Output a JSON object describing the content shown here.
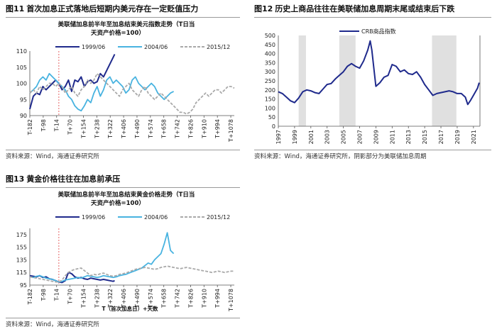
{
  "figures": [
    {
      "num": "图11",
      "title": "首次加息正式落地后短期内美元存在一定贬值压力",
      "source": "资料来源：Wind，海通证券研究所",
      "chart_data": {
        "type": "line",
        "title": "美联储加息前半年至加息结束美元指数走势（T日当天资产价格=100）",
        "title_lines": [
          "美联储加息前半年至加息结束美元指数走势（T日当",
          "天资产价格=100）"
        ],
        "xlabel": "",
        "ylabel": "",
        "x_ticks": [
          "T-182",
          "T-98",
          "T-14",
          "T+70",
          "T+154",
          "T+238",
          "T+322",
          "T+406",
          "T+490",
          "T+574",
          "T+658",
          "T+742",
          "T+826",
          "T+910",
          "T+994",
          "T+1078"
        ],
        "x_range": [
          -182,
          1100
        ],
        "ylim": [
          90,
          110
        ],
        "y_ticks": [
          90,
          95,
          100,
          105,
          110
        ],
        "vline_x": 0,
        "legend_position": "top",
        "series": [
          {
            "name": "1999/06",
            "color": "#1f2a8c",
            "style": "solid",
            "x": [
              -182,
              -160,
              -140,
              -120,
              -100,
              -80,
              -60,
              -40,
              -20,
              0,
              20,
              40,
              60,
              80,
              100,
              120,
              140,
              160,
              180,
              200,
              220,
              240,
              260,
              280,
              300,
              320,
              340,
              350
            ],
            "y": [
              92,
              96,
              97,
              96.5,
              99,
              98,
              99,
              100,
              101,
              100,
              98,
              99,
              101,
              97.5,
              101,
              100.5,
              102,
              99,
              100.5,
              101,
              100,
              100.5,
              103,
              102,
              104,
              106,
              108,
              109
            ]
          },
          {
            "name": "2004/06",
            "color": "#48b3e0",
            "style": "solid",
            "x": [
              -182,
              -160,
              -140,
              -120,
              -100,
              -80,
              -60,
              -40,
              -20,
              0,
              20,
              40,
              60,
              80,
              100,
              120,
              140,
              160,
              180,
              200,
              220,
              240,
              260,
              280,
              300,
              320,
              340,
              360,
              380,
              400,
              420,
              440,
              460,
              480,
              500,
              520,
              540,
              560,
              580,
              600,
              620,
              640,
              660,
              680,
              700,
              720
            ],
            "y": [
              97,
              98,
              99,
              101,
              102,
              101,
              103,
              102,
              101,
              100,
              99,
              98,
              96,
              95,
              93,
              92,
              91.5,
              93,
              95,
              94,
              97,
              99,
              96,
              98,
              101,
              102,
              100,
              101,
              100,
              99,
              97,
              98,
              101,
              102,
              100,
              99,
              98,
              99,
              100,
              99,
              97,
              96,
              95,
              96,
              97,
              97.5
            ]
          },
          {
            "name": "2015/12",
            "color": "#a9a9a9",
            "style": "dashed",
            "x": [
              -182,
              -160,
              -140,
              -120,
              -100,
              -80,
              -60,
              -40,
              -20,
              0,
              20,
              40,
              60,
              80,
              100,
              120,
              140,
              160,
              180,
              200,
              220,
              240,
              260,
              280,
              300,
              320,
              340,
              360,
              380,
              400,
              420,
              440,
              460,
              480,
              500,
              520,
              540,
              560,
              580,
              600,
              620,
              640,
              660,
              680,
              700,
              720,
              740,
              760,
              780,
              800,
              820,
              840,
              860,
              880,
              900,
              920,
              940,
              960,
              980,
              1000,
              1020,
              1040,
              1060,
              1080,
              1100
            ],
            "y": [
              97,
              98,
              97,
              99,
              98,
              99,
              100,
              100,
              99,
              100,
              99,
              97,
              98,
              99,
              97,
              96,
              98,
              99,
              101,
              100,
              101,
              103,
              102,
              101,
              100,
              99,
              98,
              97,
              96,
              98,
              99,
              100,
              98,
              97,
              96,
              98,
              99,
              97,
              96,
              95,
              96,
              97,
              96,
              95,
              94,
              93,
              92,
              91,
              91,
              90.5,
              91,
              92,
              94,
              95,
              96,
              97,
              96,
              97,
              98,
              98,
              97,
              98,
              99,
              99,
              98.5
            ]
          }
        ]
      }
    },
    {
      "num": "图12",
      "title": "历史上商品往往在美联储加息周期末尾或结束后下跌",
      "source": "资料来源：Wind，海通证券研究所，阴影部分为美联储加息周期",
      "chart_data": {
        "type": "line",
        "title": "",
        "xlabel": "",
        "ylabel": "",
        "x_ticks": [
          "1997",
          "1999",
          "2001",
          "2003",
          "2005",
          "2007",
          "2009",
          "2011",
          "2013",
          "2015",
          "2017",
          "2019",
          "2021"
        ],
        "x_range": [
          1997,
          2021.8
        ],
        "ylim": [
          0,
          500
        ],
        "y_ticks": [
          0,
          50,
          100,
          150,
          200,
          250,
          300,
          350,
          400,
          450,
          500
        ],
        "legend_position": "top-left",
        "shaded_periods": [
          [
            1999.5,
            2000.4
          ],
          [
            2004.5,
            2006.5
          ],
          [
            2015.9,
            2018.9
          ]
        ],
        "series": [
          {
            "name": "CRB商品指数",
            "color": "#1f2a8c",
            "x": [
              1997,
              1997.5,
              1998,
              1998.5,
              1999,
              1999.5,
              2000,
              2000.5,
              2001,
              2001.5,
              2002,
              2002.5,
              2003,
              2003.5,
              2004,
              2004.5,
              2005,
              2005.5,
              2006,
              2006.5,
              2007,
              2007.5,
              2008,
              2008.3,
              2008.5,
              2008.8,
              2009,
              2009.5,
              2010,
              2010.5,
              2011,
              2011.5,
              2012,
              2012.5,
              2013,
              2013.5,
              2014,
              2014.5,
              2015,
              2015.5,
              2016,
              2016.5,
              2017,
              2017.5,
              2018,
              2018.5,
              2019,
              2019.5,
              2020,
              2020.3,
              2020.6,
              2021,
              2021.5,
              2021.7
            ],
            "y": [
              190,
              180,
              160,
              140,
              130,
              155,
              190,
              200,
              195,
              185,
              180,
              205,
              230,
              235,
              260,
              280,
              300,
              330,
              345,
              330,
              320,
              360,
              420,
              470,
              420,
              300,
              220,
              240,
              270,
              280,
              340,
              330,
              300,
              310,
              290,
              285,
              300,
              270,
              230,
              200,
              170,
              180,
              185,
              190,
              195,
              190,
              180,
              180,
              160,
              120,
              140,
              170,
              210,
              240
            ]
          }
        ]
      }
    },
    {
      "num": "图13",
      "title": "黄金价格往往在加息前承压",
      "source": "资料来源：Wind，海通证券研究所",
      "chart_data": {
        "type": "line",
        "title": "美联储加息前半年至加息结束黄金价格走势（T日当天资产价格=100）",
        "title_lines": [
          "美联储加息前半年至加息结束黄金价格走势（T日当",
          "天资产价格=100）"
        ],
        "xlabel": "T（首次加息日）+天数",
        "ylabel": "",
        "x_ticks": [
          "T-182",
          "T-98",
          "T-14",
          "T+70",
          "T+154",
          "T+238",
          "T+322",
          "T+406",
          "T+490",
          "T+574",
          "T+658",
          "T+742",
          "T+826",
          "T+910",
          "T+994",
          "T+1078"
        ],
        "x_range": [
          -182,
          1100
        ],
        "ylim": [
          95,
          185
        ],
        "y_ticks": [
          95,
          115,
          135,
          155,
          175
        ],
        "vline_x": 0,
        "legend_position": "top",
        "series": [
          {
            "name": "1999/06",
            "color": "#1f2a8c",
            "style": "solid",
            "x": [
              -182,
              -160,
              -140,
              -120,
              -100,
              -80,
              -60,
              -40,
              -20,
              0,
              20,
              40,
              60,
              80,
              100,
              120,
              140,
              160,
              180,
              200,
              220,
              240,
              260,
              280,
              300,
              320,
              340,
              350
            ],
            "y": [
              110,
              109,
              108,
              110,
              107,
              108,
              105,
              104,
              102,
              100,
              99,
              102,
              115,
              113,
              108,
              106,
              107,
              105,
              104,
              106,
              105,
              104,
              103,
              104,
              103,
              102,
              101,
              102
            ]
          },
          {
            "name": "2004/06",
            "color": "#48b3e0",
            "style": "solid",
            "x": [
              -182,
              -160,
              -140,
              -120,
              -100,
              -80,
              -60,
              -40,
              -20,
              0,
              20,
              40,
              60,
              80,
              100,
              120,
              140,
              160,
              180,
              200,
              220,
              240,
              260,
              280,
              300,
              320,
              340,
              360,
              380,
              400,
              420,
              440,
              460,
              480,
              500,
              520,
              540,
              560,
              580,
              600,
              620,
              640,
              660,
              680,
              700,
              720
            ],
            "y": [
              108,
              107,
              109,
              110,
              108,
              106,
              105,
              104,
              102,
              100,
              101,
              103,
              104,
              105,
              106,
              107,
              106,
              108,
              110,
              109,
              108,
              107,
              108,
              110,
              109,
              108,
              107,
              108,
              110,
              111,
              112,
              114,
              116,
              118,
              120,
              122,
              126,
              130,
              128,
              135,
              140,
              145,
              160,
              178,
              150,
              145
            ]
          },
          {
            "name": "2015/12",
            "color": "#a9a9a9",
            "style": "dashed",
            "x": [
              -182,
              -160,
              -140,
              -120,
              -100,
              -80,
              -60,
              -40,
              -20,
              0,
              20,
              40,
              60,
              80,
              100,
              120,
              140,
              160,
              180,
              200,
              220,
              240,
              260,
              280,
              300,
              320,
              340,
              360,
              380,
              400,
              420,
              440,
              460,
              480,
              500,
              520,
              540,
              560,
              580,
              600,
              620,
              640,
              660,
              680,
              700,
              720,
              740,
              760,
              780,
              800,
              820,
              840,
              860,
              880,
              900,
              920,
              940,
              960,
              980,
              1000,
              1020,
              1040,
              1060,
              1080,
              1100
            ],
            "y": [
              108,
              107,
              106,
              105,
              104,
              103,
              102,
              101,
              100,
              100,
              103,
              110,
              115,
              118,
              120,
              121,
              122,
              118,
              114,
              110,
              112,
              111,
              113,
              114,
              112,
              110,
              109,
              110,
              112,
              113,
              114,
              116,
              118,
              120,
              121,
              122,
              123,
              122,
              121,
              120,
              121,
              123,
              124,
              125,
              124,
              123,
              122,
              121,
              122,
              123,
              122,
              121,
              120,
              119,
              118,
              117,
              116,
              115,
              116,
              117,
              116,
              115,
              116,
              117,
              117
            ]
          }
        ]
      }
    }
  ]
}
